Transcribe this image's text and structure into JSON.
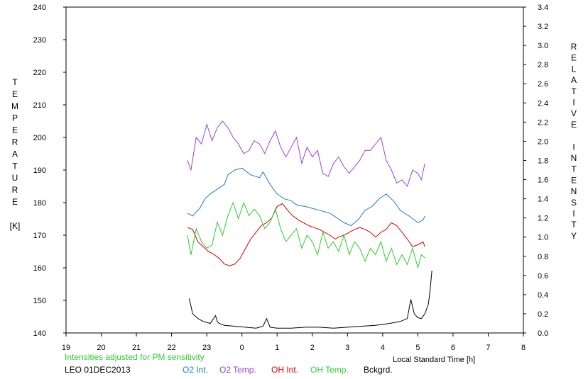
{
  "chart_data": {
    "type": "line",
    "title": "",
    "xlabel": "Local Standard Time [h]",
    "ylabel": [
      "T",
      "E",
      "M",
      "P",
      "E",
      "R",
      "A",
      "T",
      "U",
      "R",
      "E",
      "",
      "[K]"
    ],
    "y2label": [
      "R",
      "E",
      "L",
      "A",
      "T",
      "I",
      "V",
      "E",
      "",
      "I",
      "N",
      "T",
      "E",
      "N",
      "S",
      "I",
      "T",
      "Y"
    ],
    "x_ticks": [
      "19",
      "20",
      "21",
      "22",
      "23",
      "0",
      "1",
      "2",
      "3",
      "4",
      "5",
      "6",
      "7",
      "8"
    ],
    "y_ticks": [
      "140",
      "150",
      "160",
      "170",
      "180",
      "190",
      "200",
      "210",
      "220",
      "230",
      "240"
    ],
    "y2_ticks": [
      "0.0",
      "0.2",
      "0.4",
      "0.6",
      "0.8",
      "1.0",
      "1.2",
      "1.4",
      "1.6",
      "1.8",
      "2.0",
      "2.2",
      "2.4",
      "2.6",
      "2.8",
      "3.0",
      "3.2",
      "3.4"
    ],
    "xlim": [
      19,
      32
    ],
    "ylim": [
      140,
      240
    ],
    "y2lim": [
      0.0,
      3.4
    ],
    "grid": false,
    "series": [
      {
        "name": "O2 Int.",
        "axis": "right",
        "color": "#1e78d2",
        "x": [
          22.45,
          22.6,
          22.8,
          22.95,
          23.1,
          23.3,
          23.5,
          23.6,
          23.8,
          24.0,
          24.25,
          24.5,
          24.6,
          24.8,
          25.0,
          25.2,
          25.4,
          25.5,
          25.6,
          25.8,
          26.0,
          26.2,
          26.5,
          26.7,
          26.9,
          27.1,
          27.3,
          27.5,
          27.7,
          27.9,
          28.1,
          28.3,
          28.5,
          28.75,
          28.9,
          29.0,
          29.15,
          29.2
        ],
        "values": [
          1.25,
          1.22,
          1.3,
          1.4,
          1.45,
          1.5,
          1.55,
          1.65,
          1.7,
          1.72,
          1.65,
          1.62,
          1.68,
          1.55,
          1.45,
          1.4,
          1.38,
          1.35,
          1.33,
          1.32,
          1.3,
          1.28,
          1.25,
          1.2,
          1.15,
          1.12,
          1.18,
          1.28,
          1.32,
          1.4,
          1.45,
          1.38,
          1.28,
          1.22,
          1.18,
          1.15,
          1.18,
          1.22
        ]
      },
      {
        "name": "O2 Temp.",
        "axis": "left",
        "color": "#9b42d6",
        "x": [
          22.45,
          22.55,
          22.7,
          22.85,
          23.0,
          23.15,
          23.3,
          23.45,
          23.6,
          23.75,
          23.9,
          24.05,
          24.2,
          24.35,
          24.5,
          24.65,
          24.8,
          24.95,
          25.1,
          25.25,
          25.4,
          25.55,
          25.7,
          25.85,
          26.0,
          26.15,
          26.3,
          26.45,
          26.6,
          26.75,
          26.9,
          27.05,
          27.2,
          27.35,
          27.5,
          27.65,
          27.8,
          27.95,
          28.1,
          28.25,
          28.4,
          28.55,
          28.7,
          28.85,
          29.0,
          29.1,
          29.2
        ],
        "values": [
          193,
          190,
          200,
          198,
          204,
          199,
          203,
          205,
          203,
          200,
          198,
          195,
          196,
          199,
          198,
          195,
          199,
          202,
          197,
          194,
          197,
          200,
          192,
          197,
          194,
          196,
          189,
          188,
          192,
          194,
          191,
          189,
          191,
          193,
          196,
          196,
          198,
          200,
          193,
          190,
          186,
          187,
          185,
          190,
          189,
          187,
          192
        ]
      },
      {
        "name": "OH Int.",
        "axis": "right",
        "color": "#d40000",
        "x": [
          22.45,
          22.6,
          22.75,
          22.9,
          23.05,
          23.2,
          23.35,
          23.5,
          23.65,
          23.8,
          23.95,
          24.1,
          24.25,
          24.4,
          24.55,
          24.7,
          24.85,
          25.0,
          25.15,
          25.3,
          25.45,
          25.6,
          25.75,
          25.9,
          26.05,
          26.2,
          26.35,
          26.5,
          26.65,
          26.75,
          26.9,
          27.05,
          27.2,
          27.35,
          27.5,
          27.65,
          27.8,
          27.95,
          28.1,
          28.25,
          28.4,
          28.55,
          28.7,
          28.85,
          29.0,
          29.15,
          29.2
        ],
        "values": [
          1.1,
          1.08,
          0.95,
          0.9,
          0.85,
          0.82,
          0.78,
          0.72,
          0.7,
          0.72,
          0.78,
          0.88,
          0.98,
          1.05,
          1.12,
          1.15,
          1.2,
          1.32,
          1.35,
          1.28,
          1.22,
          1.18,
          1.15,
          1.12,
          1.1,
          1.08,
          1.05,
          1.02,
          0.98,
          1.0,
          1.02,
          1.05,
          1.08,
          1.1,
          1.08,
          1.05,
          1.0,
          1.05,
          1.08,
          1.15,
          1.12,
          1.05,
          0.98,
          0.9,
          0.92,
          0.95,
          0.9
        ]
      },
      {
        "name": "OH Temp.",
        "axis": "left",
        "color": "#2ecc2e",
        "x": [
          22.45,
          22.55,
          22.7,
          22.85,
          23.0,
          23.15,
          23.3,
          23.45,
          23.6,
          23.75,
          23.9,
          24.05,
          24.2,
          24.35,
          24.5,
          24.65,
          24.8,
          24.95,
          25.1,
          25.25,
          25.4,
          25.55,
          25.7,
          25.85,
          26.0,
          26.15,
          26.3,
          26.45,
          26.6,
          26.75,
          26.9,
          27.05,
          27.2,
          27.35,
          27.5,
          27.65,
          27.8,
          27.95,
          28.1,
          28.25,
          28.4,
          28.55,
          28.7,
          28.85,
          29.0,
          29.1,
          29.2
        ],
        "values": [
          170,
          164,
          172,
          168,
          166,
          167,
          174,
          170,
          176,
          180,
          175,
          180,
          176,
          178,
          176,
          172,
          174,
          178,
          172,
          168,
          170,
          172,
          166,
          170,
          168,
          164,
          171,
          166,
          168,
          165,
          170,
          164,
          168,
          166,
          162,
          166,
          164,
          168,
          162,
          166,
          161,
          164,
          161,
          166,
          160,
          164,
          163
        ]
      },
      {
        "name": "Bckgrd.",
        "axis": "right",
        "color": "#000000",
        "x": [
          22.5,
          22.6,
          22.75,
          22.9,
          23.1,
          23.25,
          23.3,
          23.35,
          23.5,
          23.8,
          24.1,
          24.4,
          24.6,
          24.7,
          24.8,
          25.0,
          25.4,
          25.8,
          26.2,
          26.6,
          27.0,
          27.4,
          27.8,
          28.2,
          28.5,
          28.7,
          28.75,
          28.8,
          28.9,
          29.0,
          29.1,
          29.2,
          29.3,
          29.35,
          29.4
        ],
        "values": [
          0.36,
          0.2,
          0.15,
          0.12,
          0.1,
          0.18,
          0.12,
          0.1,
          0.08,
          0.07,
          0.06,
          0.05,
          0.07,
          0.15,
          0.06,
          0.05,
          0.05,
          0.06,
          0.06,
          0.05,
          0.06,
          0.07,
          0.08,
          0.1,
          0.12,
          0.15,
          0.25,
          0.35,
          0.2,
          0.16,
          0.15,
          0.2,
          0.3,
          0.45,
          0.65
        ]
      }
    ]
  },
  "annotations": {
    "note": "Intensities adjusted for PM sensitivity",
    "station_date": "LEO 01DEC2013"
  },
  "legend": [
    {
      "label": "O2 Int.",
      "color": "#1e78d2"
    },
    {
      "label": "O2 Temp.",
      "color": "#9b42d6"
    },
    {
      "label": "OH Int.",
      "color": "#d40000"
    },
    {
      "label": "OH Temp.",
      "color": "#2ecc2e"
    },
    {
      "label": "Bckgrd.",
      "color": "#000000"
    }
  ],
  "colors": {
    "note": "#2ecc2e",
    "axis": "#000000"
  }
}
